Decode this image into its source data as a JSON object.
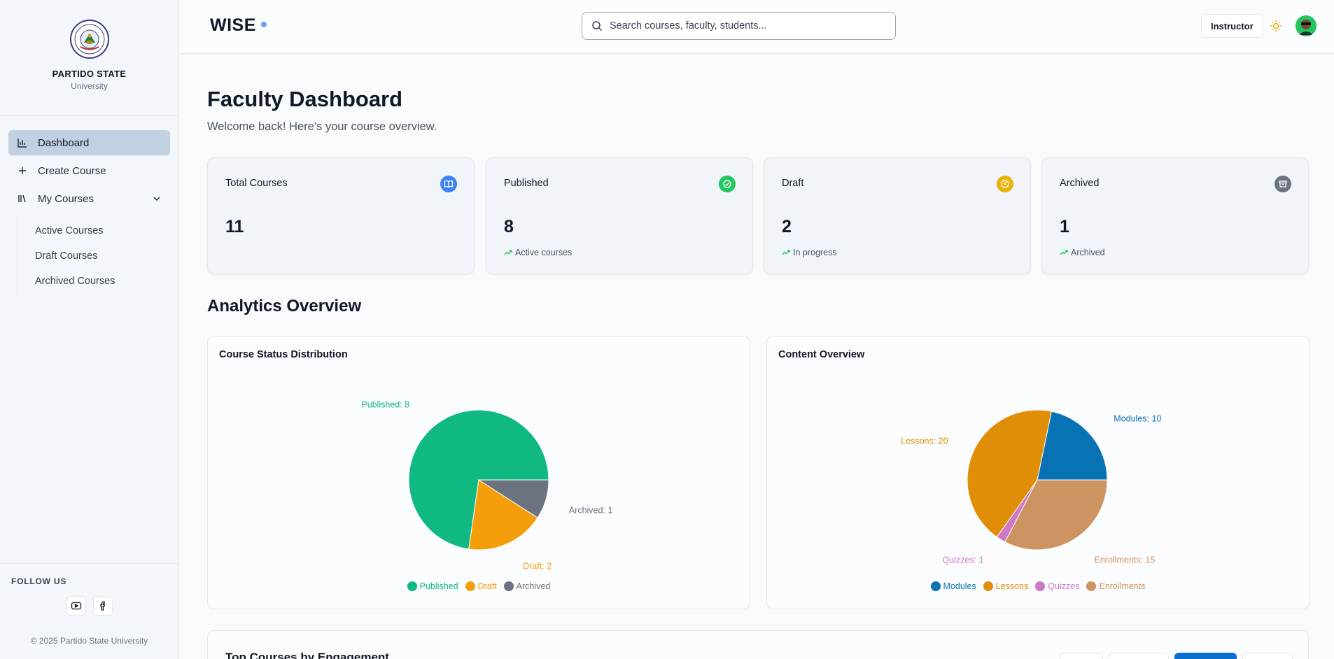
{
  "sidebar": {
    "university_name": "PARTIDO STATE",
    "university_sub": "University",
    "nav": {
      "dashboard": "Dashboard",
      "create_course": "Create Course",
      "my_courses": "My Courses"
    },
    "subnav": [
      "Active Courses",
      "Draft Courses",
      "Archived Courses"
    ],
    "follow_title": "FOLLOW US",
    "copyright": "© 2025 Partido State University"
  },
  "header": {
    "logo": "WISE",
    "search_placeholder": "Search courses, faculty, students...",
    "role": "Instructor"
  },
  "main": {
    "title": "Faculty Dashboard",
    "subtitle": "Welcome back! Here's your course overview.",
    "stats": [
      {
        "label": "Total Courses",
        "value": "11",
        "note": "",
        "color": "#3b82f6",
        "icon": "book-open-icon"
      },
      {
        "label": "Published",
        "value": "8",
        "note": "Active courses",
        "color": "#22c55e",
        "icon": "check-circle-icon"
      },
      {
        "label": "Draft",
        "value": "2",
        "note": "In progress",
        "color": "#eab308",
        "icon": "clock-icon"
      },
      {
        "label": "Archived",
        "value": "1",
        "note": "Archived",
        "color": "#6b7280",
        "icon": "archive-icon"
      }
    ],
    "analytics_title": "Analytics Overview",
    "bottom_title": "Top Courses by Engagement"
  },
  "chart_data": [
    {
      "type": "pie",
      "title": "Course Status Distribution",
      "categories": [
        "Published",
        "Draft",
        "Archived"
      ],
      "values": [
        8,
        2,
        1
      ],
      "colors": [
        "#10b981",
        "#f59e0b",
        "#6b7280"
      ],
      "data_labels": [
        "Published: 8",
        "Draft: 2",
        "Archived: 1"
      ],
      "legend": "bottom"
    },
    {
      "type": "pie",
      "title": "Content Overview",
      "categories": [
        "Modules",
        "Lessons",
        "Quizzes",
        "Enrollments"
      ],
      "values": [
        10,
        20,
        1,
        15
      ],
      "colors": [
        "#0873b4",
        "#e08d07",
        "#cf78c4",
        "#cd9461"
      ],
      "data_labels": [
        "Modules: 10",
        "Lessons: 20",
        "Quizzes: 1",
        "Enrollments: 15"
      ],
      "legend": "bottom"
    }
  ]
}
